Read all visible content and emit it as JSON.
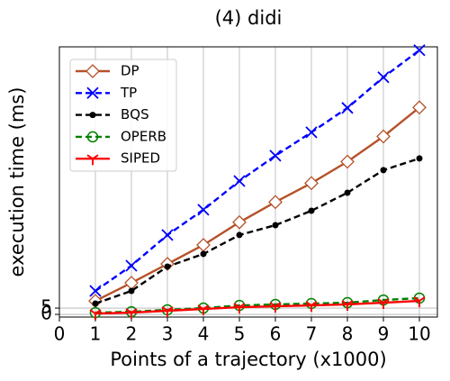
{
  "chart_data": {
    "type": "line",
    "title": "(4) didi",
    "x_label": "Points of a trajectory (x1000)",
    "y_label": "execution time (ms)",
    "x": [
      1,
      2,
      3,
      4,
      5,
      6,
      7,
      8,
      9,
      10
    ],
    "series": [
      {
        "name": "DP",
        "color": "#b5522a",
        "marker": "diamond",
        "dashed": false,
        "values": [
          10.7,
          25,
          40,
          55,
          73,
          89,
          104,
          121,
          141,
          164
        ]
      },
      {
        "name": "TP",
        "color": "#0000ff",
        "marker": "x",
        "dashed": true,
        "values": [
          18.6,
          38.6,
          62.9,
          82.9,
          105.7,
          125.7,
          144.3,
          163.6,
          187.9,
          209.3
        ]
      },
      {
        "name": "BQS",
        "color": "#000000",
        "marker": "dot",
        "dashed": true,
        "values": [
          8.6,
          18.6,
          37.9,
          47.9,
          62.9,
          70.7,
          82.1,
          96.4,
          114.3,
          123.6
        ]
      },
      {
        "name": "OPERB",
        "color": "#008000",
        "marker": "circle",
        "dashed": true,
        "values": [
          1.4,
          2.1,
          3.6,
          5,
          7.1,
          7.9,
          8.6,
          9.3,
          11.4,
          12.9
        ]
      },
      {
        "name": "SIPED",
        "color": "#ff0000",
        "marker": "tri",
        "dashed": false,
        "values": [
          0.7,
          1.4,
          2.9,
          4.3,
          5.7,
          6.4,
          7.1,
          7.9,
          9.3,
          10.7
        ]
      }
    ],
    "xlim": [
      0,
      10.5
    ],
    "ylim": [
      -2.1,
      212
    ],
    "xticks": [
      0,
      1,
      2,
      3,
      4,
      5,
      6,
      7,
      8,
      9,
      10
    ],
    "yticks": [
      0,
      5
    ],
    "grid": true,
    "legend_position": "upper-left"
  }
}
